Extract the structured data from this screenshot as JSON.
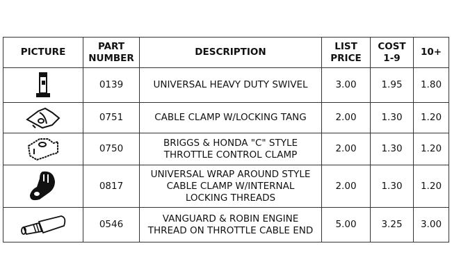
{
  "headers": {
    "picture": "PICTURE",
    "part_number": "PART\nNUMBER",
    "description": "DESCRIPTION",
    "list_price": "LIST\nPRICE",
    "cost_1_9": "COST\n1-9",
    "cost_10": "10+"
  },
  "rows": [
    {
      "icon": "swivel-icon",
      "part": "0139",
      "description": "UNIVERSAL HEAVY DUTY SWIVEL",
      "list": "3.00",
      "cost": "1.95",
      "cost10": "1.80"
    },
    {
      "icon": "cable-clamp-icon",
      "part": "0751",
      "description": "CABLE CLAMP W/LOCKING TANG",
      "list": "2.00",
      "cost": "1.30",
      "cost10": "1.20"
    },
    {
      "icon": "throttle-clamp-icon",
      "part": "0750",
      "description": "BRIGGS & HONDA \"C\" STYLE\nTHROTTLE CONTROL CLAMP",
      "list": "2.00",
      "cost": "1.30",
      "cost10": "1.20"
    },
    {
      "icon": "wrap-clamp-icon",
      "part": "0817",
      "description": "UNIVERSAL WRAP AROUND STYLE\nCABLE CLAMP W/INTERNAL\nLOCKING THREADS",
      "list": "2.00",
      "cost": "1.30",
      "cost10": "1.20"
    },
    {
      "icon": "cable-end-icon",
      "part": "0546",
      "description": "VANGUARD & ROBIN ENGINE\nTHREAD ON THROTTLE CABLE END",
      "list": "5.00",
      "cost": "3.25",
      "cost10": "3.00"
    }
  ]
}
